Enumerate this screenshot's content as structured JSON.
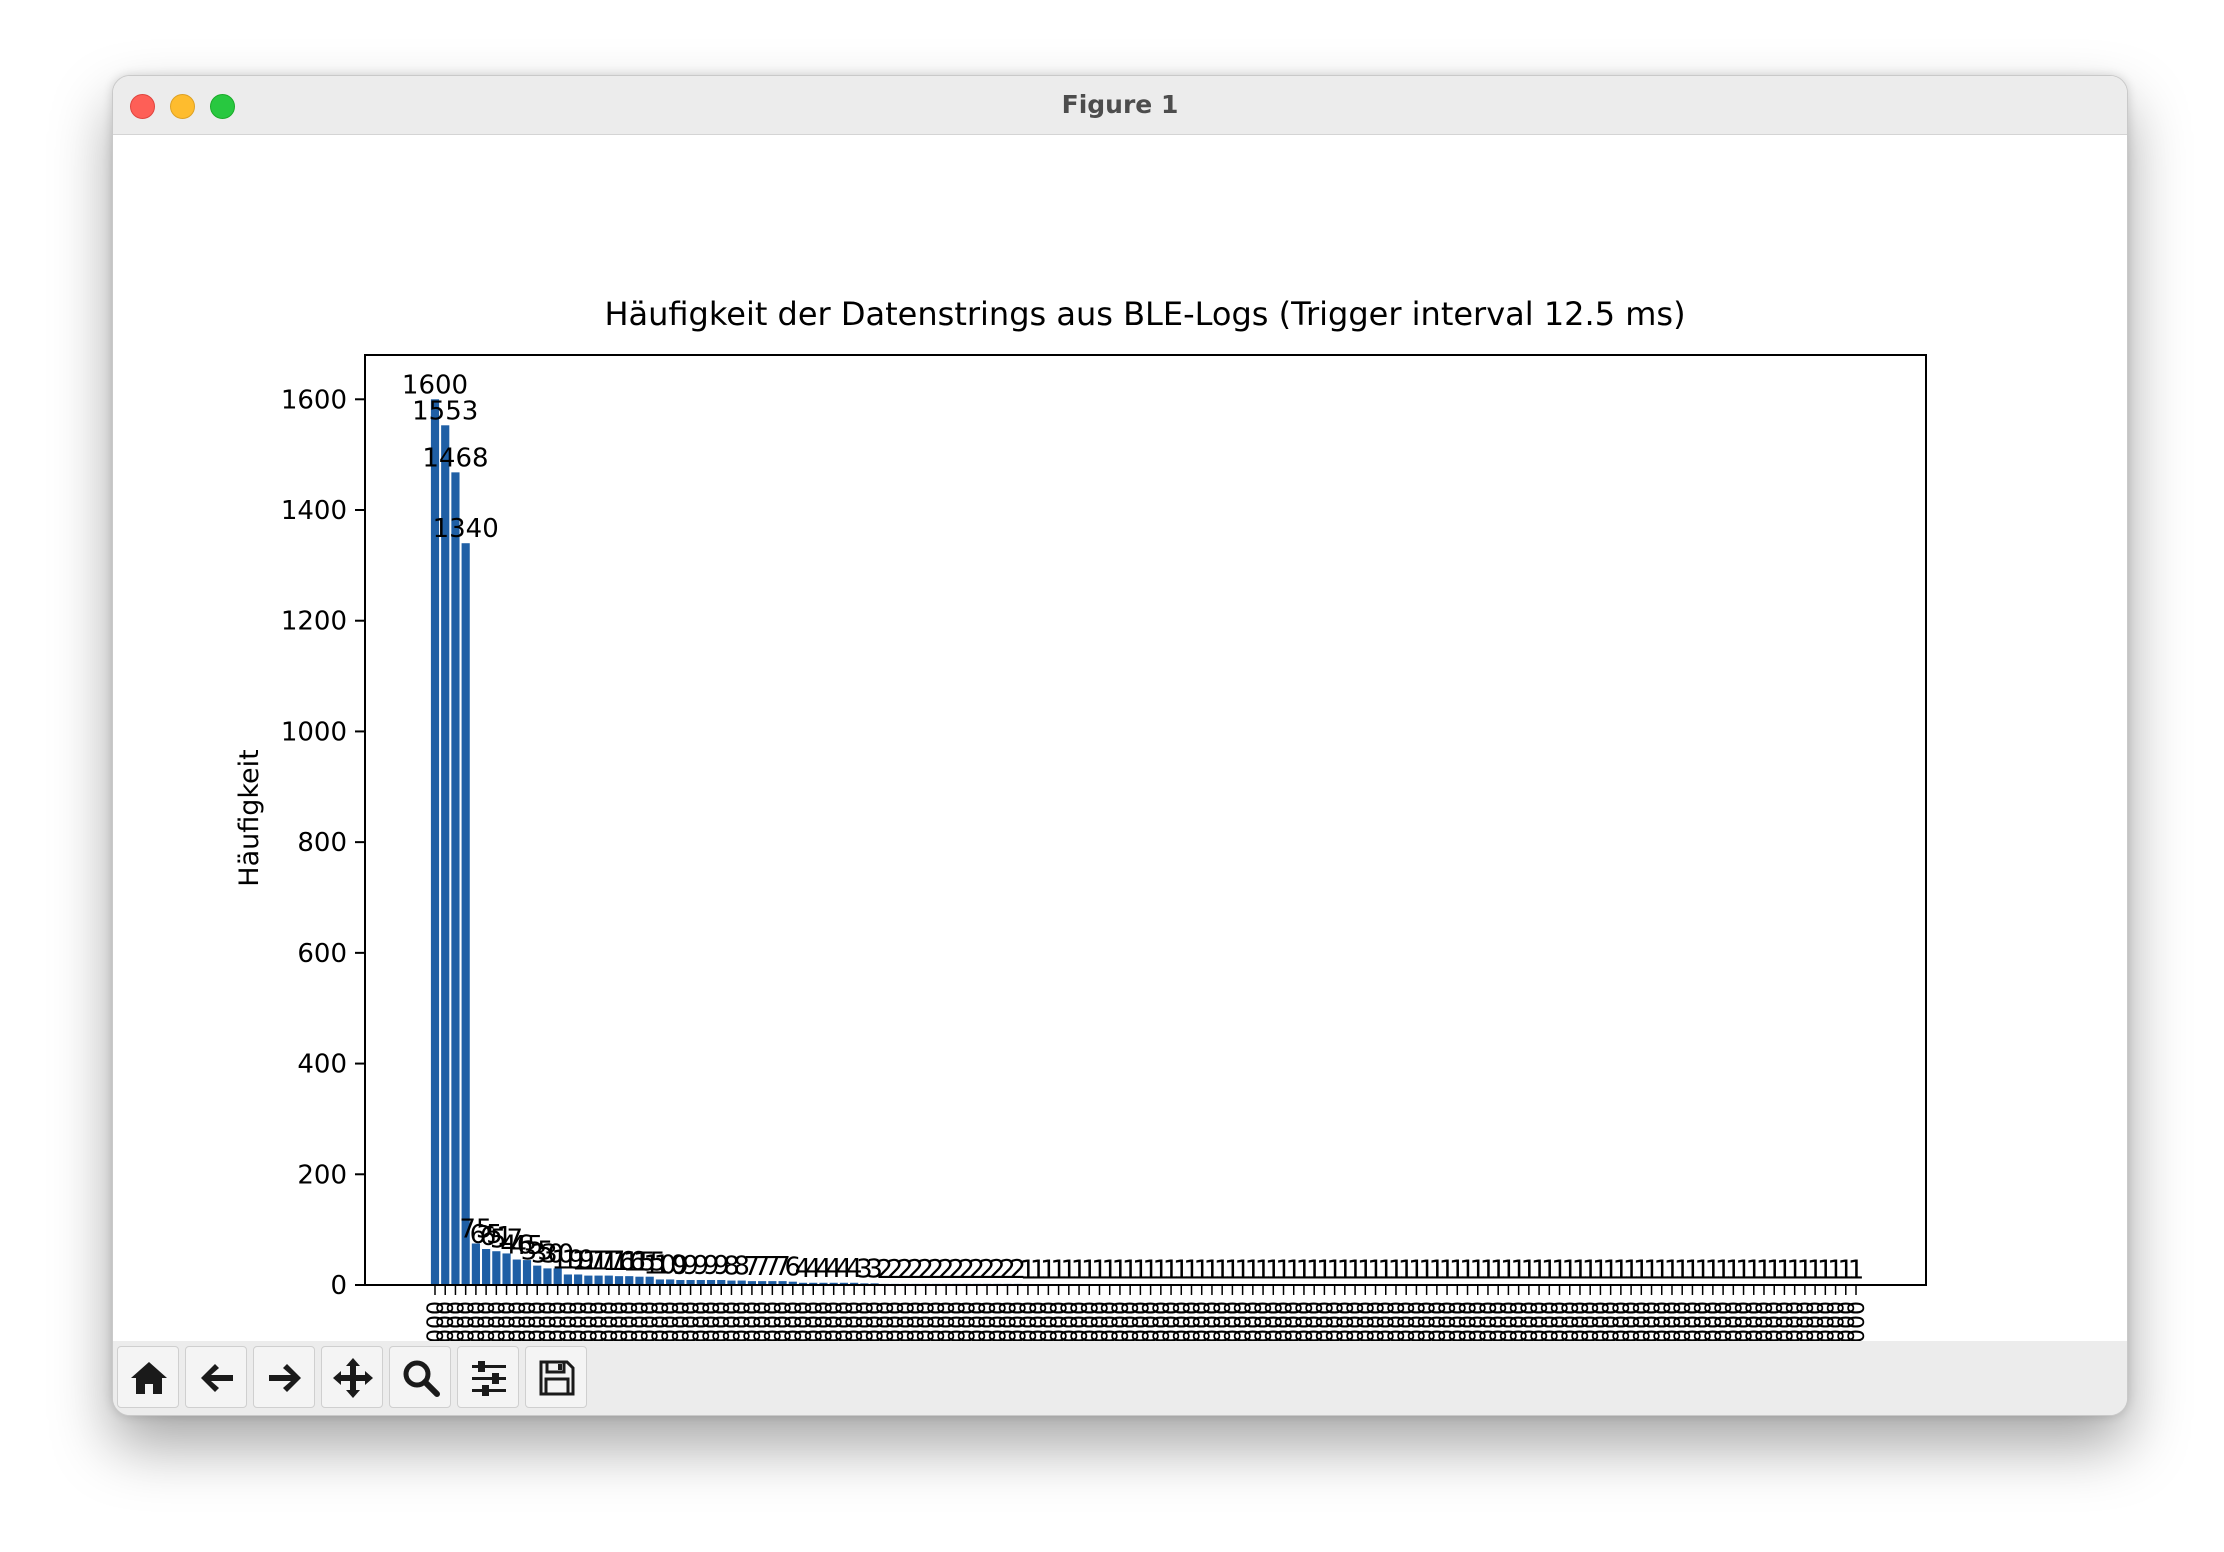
{
  "window": {
    "title": "Figure 1"
  },
  "toolbar": {
    "buttons": [
      {
        "name": "home-button",
        "icon": "home-icon"
      },
      {
        "name": "back-button",
        "icon": "arrow-left-icon"
      },
      {
        "name": "forward-button",
        "icon": "arrow-right-icon"
      },
      {
        "name": "pan-button",
        "icon": "move-icon"
      },
      {
        "name": "zoom-button",
        "icon": "search-icon"
      },
      {
        "name": "configure-subplots-button",
        "icon": "sliders-icon"
      },
      {
        "name": "save-button",
        "icon": "floppy-disk-icon"
      }
    ]
  },
  "chart_data": {
    "type": "bar",
    "title": "Häufigkeit der Datenstrings aus BLE-Logs (Trigger interval 12.5 ms)",
    "xlabel": "",
    "ylabel": "Häufigkeit",
    "ylim": [
      0,
      1680
    ],
    "yticks": [
      0,
      200,
      400,
      600,
      800,
      1000,
      1200,
      1400,
      1600
    ],
    "bar_color": "#1f5fa5",
    "grid": false,
    "legend": "none",
    "category_tick_text": "0000000000",
    "category_label_note": "x tick labels are long vertical strings that are clipped by the toolbar; only a leading repeated '0' pattern is legible",
    "values": [
      1600,
      1553,
      1468,
      1340,
      75,
      65,
      61,
      57,
      46,
      45,
      35,
      30,
      30,
      19,
      19,
      17,
      17,
      17,
      16,
      16,
      15,
      15,
      10,
      10,
      9,
      9,
      9,
      9,
      9,
      8,
      8,
      7,
      7,
      7,
      7,
      6,
      4,
      4,
      4,
      4,
      4,
      4,
      3,
      3,
      2,
      2,
      2,
      2,
      2,
      2,
      2,
      2,
      2,
      2,
      2,
      2,
      2,
      2,
      1,
      1,
      1,
      1,
      1,
      1,
      1,
      1,
      1,
      1,
      1,
      1,
      1,
      1,
      1,
      1,
      1,
      1,
      1,
      1,
      1,
      1,
      1,
      1,
      1,
      1,
      1,
      1,
      1,
      1,
      1,
      1,
      1,
      1,
      1,
      1,
      1,
      1,
      1,
      1,
      1,
      1,
      1,
      1,
      1,
      1,
      1,
      1,
      1,
      1,
      1,
      1,
      1,
      1,
      1,
      1,
      1,
      1,
      1,
      1,
      1,
      1,
      1,
      1,
      1,
      1,
      1,
      1,
      1,
      1,
      1,
      1,
      1,
      1,
      1,
      1,
      1,
      1,
      1,
      1,
      1,
      1
    ]
  }
}
